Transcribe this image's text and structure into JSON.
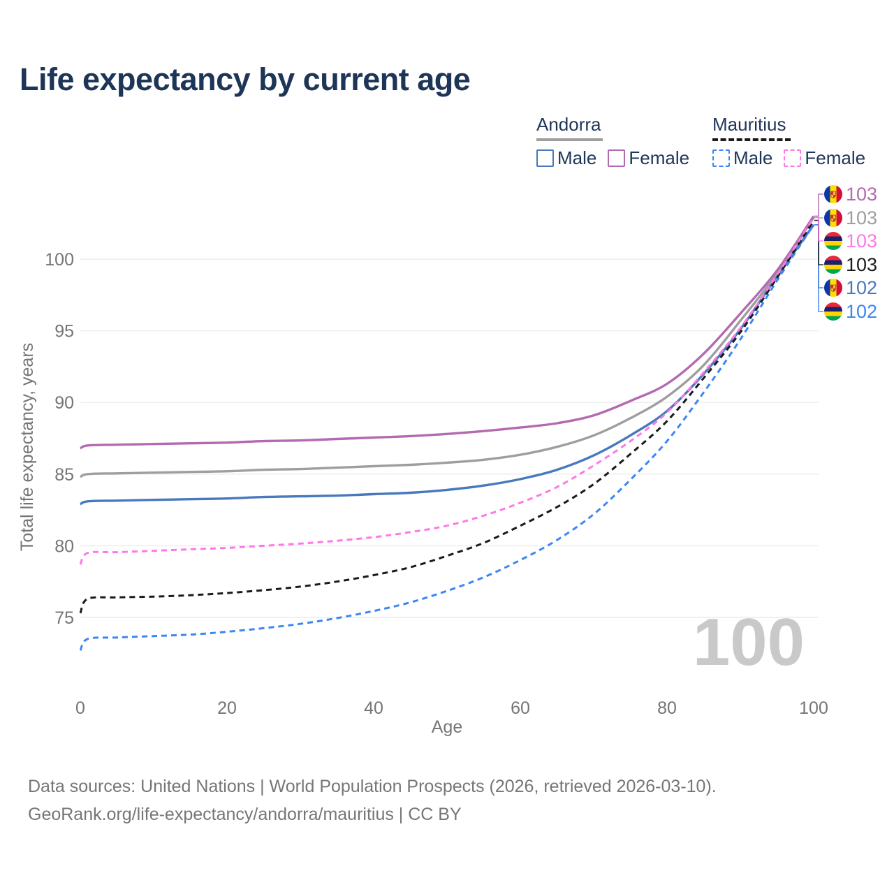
{
  "title": "Life expectancy by current age",
  "legend": {
    "andorra": {
      "label": "Andorra",
      "male": "Male",
      "female": "Female"
    },
    "mauritius": {
      "label": "Mauritius",
      "male": "Male",
      "female": "Female"
    }
  },
  "watermark": "100",
  "footer": {
    "line1": "Data sources: United Nations | World Population Prospects (2026, retrieved 2026-03-10).",
    "line2": "GeoRank.org/life-expectancy/andorra/mauritius | CC BY"
  },
  "colors": {
    "andorra_male": "#4879bd",
    "andorra_female": "#b36ab0",
    "andorra_total": "#9e9e9e",
    "mauritius_male": "#3c86f5",
    "mauritius_female": "#ff77e8",
    "mauritius_total": "#1a1a1a",
    "title_text": "#1d3557",
    "axis_text": "#757575",
    "gridline": "#ececec",
    "watermark": "#c9c9c9",
    "footer_text": "#767676"
  },
  "chart_data": {
    "type": "line",
    "title": "Life expectancy by current age",
    "xlabel": "Age",
    "ylabel": "Total life expectancy, years",
    "xlim": [
      0,
      100
    ],
    "ylim": [
      72.5,
      103.5
    ],
    "x_ticks": [
      0,
      20,
      40,
      60,
      80,
      100
    ],
    "y_ticks": [
      75,
      80,
      85,
      90,
      95,
      100
    ],
    "grid": "horizontal-only",
    "legend_position": "top-right",
    "ages": [
      0,
      1,
      5,
      10,
      15,
      20,
      25,
      30,
      35,
      40,
      45,
      50,
      55,
      60,
      65,
      70,
      75,
      80,
      85,
      90,
      95,
      100
    ],
    "series": [
      {
        "id": "andorra-male",
        "name": "Andorra Male",
        "country": "Andorra",
        "sex": "Male",
        "color": "#4879bd",
        "line": "solid",
        "slot": 4,
        "end_label": "102",
        "values": [
          82.9,
          83.1,
          83.15,
          83.2,
          83.25,
          83.3,
          83.4,
          83.45,
          83.5,
          83.6,
          83.7,
          83.9,
          84.2,
          84.65,
          85.3,
          86.3,
          87.7,
          89.4,
          92.0,
          95.1,
          98.8,
          102.4
        ]
      },
      {
        "id": "andorra-total",
        "name": "Andorra (both sexes)",
        "country": "Andorra",
        "sex": "Both",
        "color": "#9e9e9e",
        "line": "solid",
        "slot": 1,
        "end_label": "103",
        "values": [
          84.8,
          85.0,
          85.05,
          85.1,
          85.15,
          85.2,
          85.3,
          85.35,
          85.45,
          85.55,
          85.65,
          85.8,
          86.0,
          86.35,
          86.9,
          87.7,
          88.9,
          90.4,
          92.6,
          95.7,
          99.0,
          102.9
        ]
      },
      {
        "id": "andorra-female",
        "name": "Andorra Female",
        "country": "Andorra",
        "sex": "Female",
        "color": "#b36ab0",
        "line": "solid",
        "slot": 0,
        "end_label": "103",
        "values": [
          86.8,
          87.0,
          87.05,
          87.1,
          87.15,
          87.2,
          87.3,
          87.35,
          87.45,
          87.55,
          87.65,
          87.8,
          88.0,
          88.25,
          88.55,
          89.1,
          90.1,
          91.3,
          93.4,
          96.2,
          99.2,
          103.0
        ]
      },
      {
        "id": "mauritius-male",
        "name": "Mauritius Male",
        "country": "Mauritius",
        "sex": "Male",
        "color": "#3c86f5",
        "line": "dashed",
        "slot": 5,
        "end_label": "102",
        "values": [
          72.7,
          73.5,
          73.6,
          73.7,
          73.8,
          74.0,
          74.25,
          74.55,
          74.95,
          75.45,
          76.05,
          76.85,
          77.8,
          79.0,
          80.4,
          82.2,
          84.6,
          87.3,
          90.7,
          94.4,
          98.5,
          102.4
        ]
      },
      {
        "id": "mauritius-total",
        "name": "Mauritius (both sexes)",
        "country": "Mauritius",
        "sex": "Both",
        "color": "#1a1a1a",
        "line": "dashed",
        "slot": 3,
        "end_label": "103",
        "values": [
          75.3,
          76.3,
          76.4,
          76.45,
          76.55,
          76.7,
          76.9,
          77.15,
          77.5,
          77.95,
          78.5,
          79.3,
          80.2,
          81.4,
          82.7,
          84.3,
          86.4,
          88.7,
          91.7,
          94.9,
          98.7,
          102.7
        ]
      },
      {
        "id": "mauritius-female",
        "name": "Mauritius Female",
        "country": "Mauritius",
        "sex": "Female",
        "color": "#ff77e8",
        "line": "dashed",
        "slot": 2,
        "end_label": "103",
        "values": [
          78.7,
          79.5,
          79.55,
          79.65,
          79.75,
          79.85,
          80.0,
          80.15,
          80.35,
          80.6,
          80.95,
          81.4,
          82.1,
          83.0,
          84.1,
          85.6,
          87.3,
          89.3,
          92.1,
          95.2,
          98.9,
          102.9
        ]
      }
    ]
  }
}
